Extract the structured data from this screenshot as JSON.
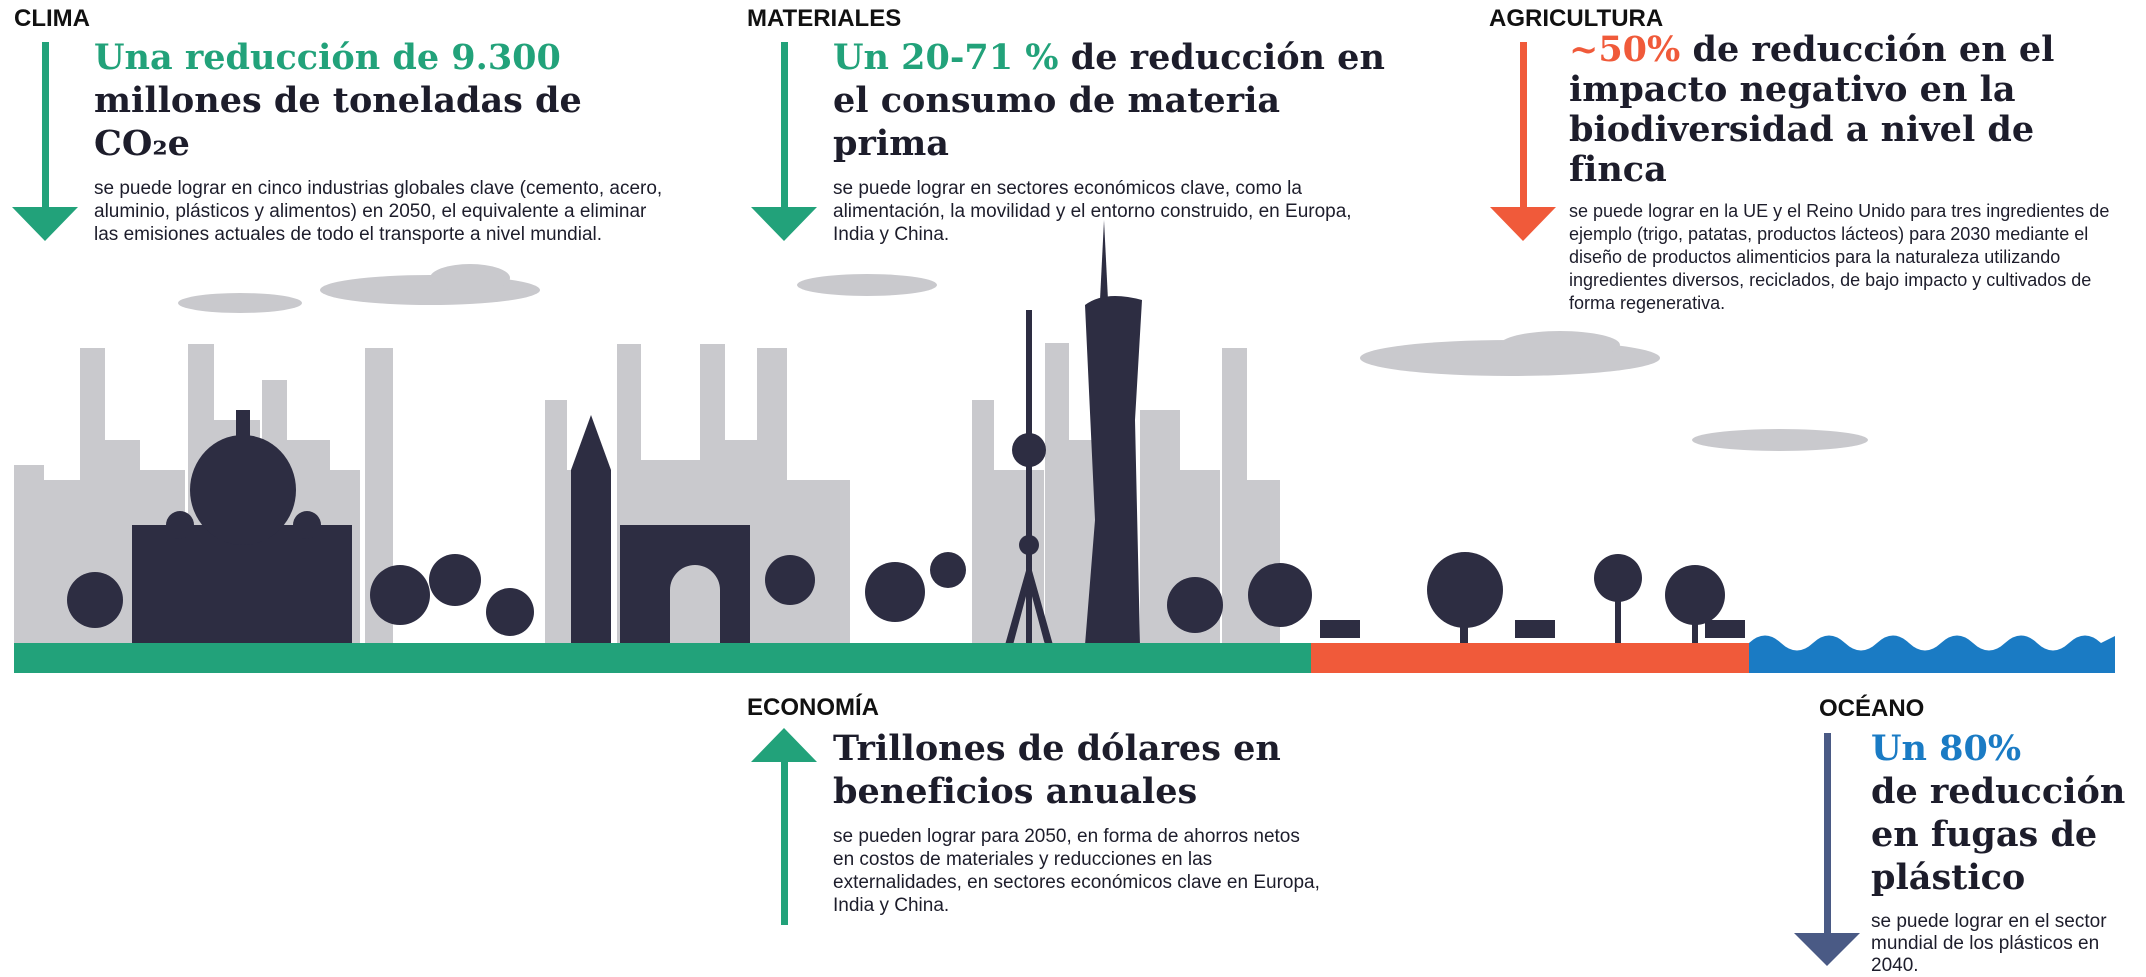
{
  "sections": [
    {
      "label": "CLIMA",
      "highlight": "Una reducción de 9.300",
      "title": "millones de toneladas de CO₂e",
      "body": "se puede lograr en cinco industrias globales clave (cemento, acero, aluminio, plásticos y alimentos) en 2050, el equivalente a eliminar las emisiones actuales de todo el transporte a nivel mundial."
    },
    {
      "label": "MATERIALES",
      "highlight": "Un 20-71 %",
      "title": "de reducción en el consumo de materia prima",
      "body": "se puede lograr en sectores económicos clave, como la alimentación, la movilidad y el entorno construido, en Europa, India y China."
    },
    {
      "label": "AGRICULTURA",
      "highlight": "~50%",
      "title": "de reducción en el impacto negativo en la biodiversidad a nivel de finca",
      "body": "se puede lograr en la UE y el Reino Unido para tres ingredientes de ejemplo (trigo, patatas, productos lácteos) para 2030 mediante el diseño de productos alimenticios para la naturaleza utilizando ingredientes diversos, reciclados, de bajo impacto y cultivados de forma regenerativa."
    },
    {
      "label": "ECONOMÍA",
      "title": "Trillones de dólares en beneficios anuales",
      "body": "se pueden lograr para 2050, en forma de ahorros netos en costos de materiales y reducciones en las externalidades, en sectores económicos clave en Europa, India y China."
    },
    {
      "label": "OCÉANO",
      "highlight": "Un 80%",
      "title": "de reducción en fugas de plástico",
      "body": "se puede lograr en el sector mundial de los plásticos en 2040."
    }
  ]
}
